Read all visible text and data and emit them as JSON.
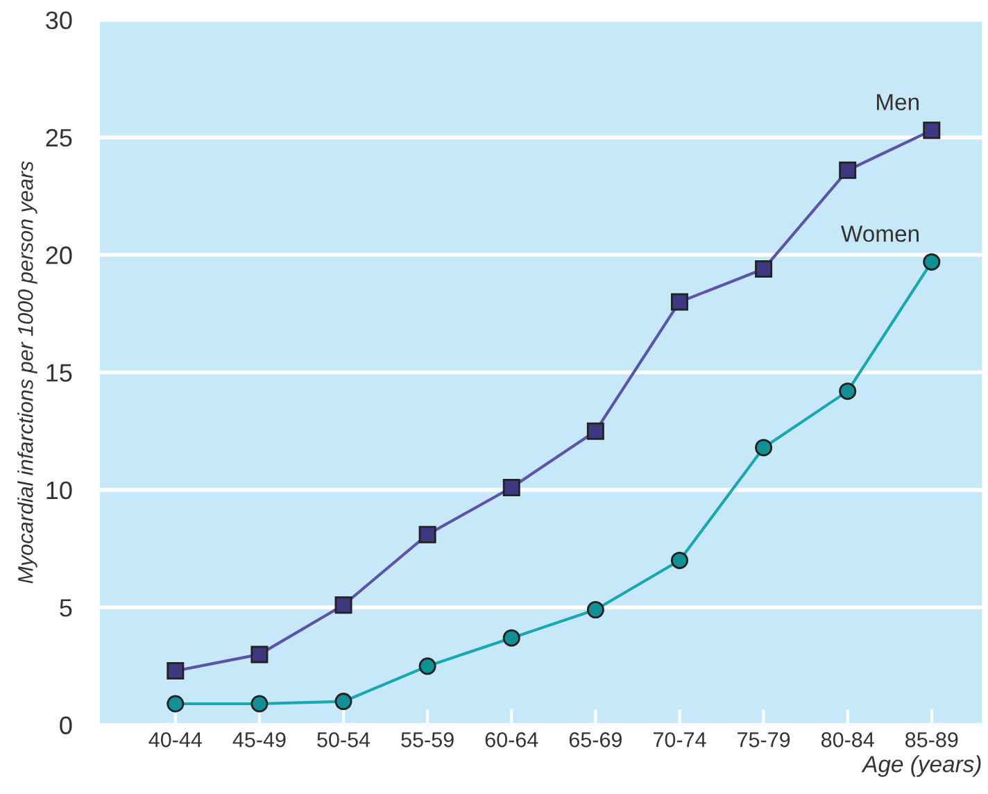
{
  "chart_data": {
    "type": "line",
    "xlabel": "Age (years)",
    "ylabel": "Myocardial infarctions per 1000 person years",
    "categories": [
      "40-44",
      "45-49",
      "50-54",
      "55-59",
      "60-64",
      "65-69",
      "70-74",
      "75-79",
      "80-84",
      "85-89"
    ],
    "series": [
      {
        "name": "Men",
        "color": "#5a55a8",
        "marker": "square",
        "values": [
          2.3,
          3.0,
          5.1,
          8.1,
          10.1,
          12.5,
          18.0,
          19.4,
          23.6,
          25.3
        ]
      },
      {
        "name": "Women",
        "color": "#1aa8b0",
        "marker": "circle",
        "values": [
          0.9,
          0.9,
          1.0,
          2.5,
          3.7,
          4.9,
          7.0,
          11.8,
          14.2,
          19.7
        ]
      }
    ],
    "ylim": [
      0,
      30
    ],
    "yticks": [
      0,
      5,
      10,
      15,
      20,
      25,
      30
    ],
    "grid": "y",
    "line_style": "solid"
  }
}
